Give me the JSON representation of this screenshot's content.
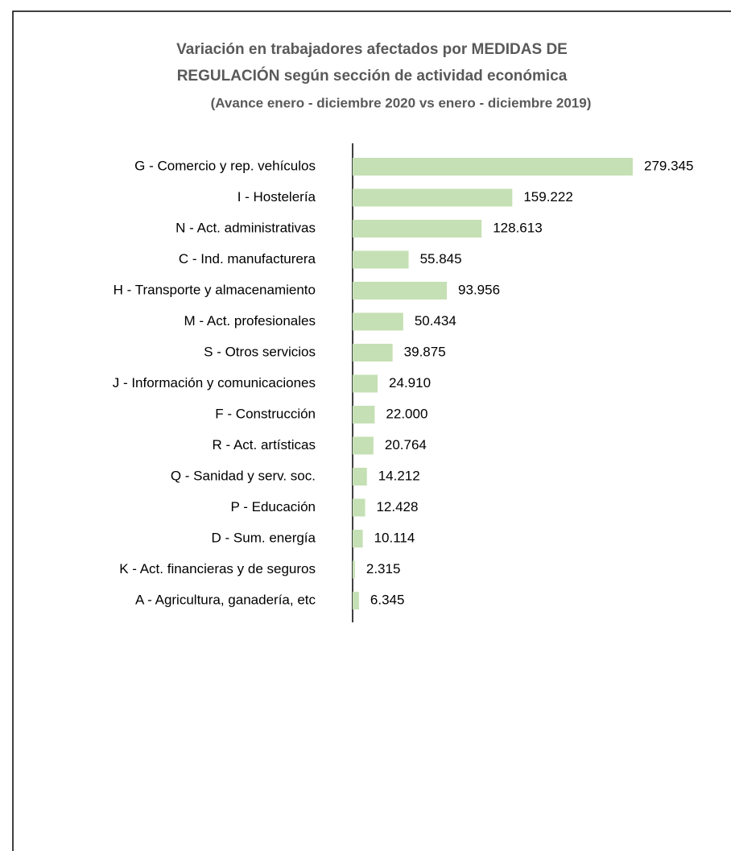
{
  "chart_data": {
    "type": "bar",
    "orientation": "horizontal",
    "title": [
      "Variación en trabajadores afectados por MEDIDAS DE",
      "REGULACIÓN según sección de actividad económica"
    ],
    "subtitle": "(Avance enero - diciembre 2020 vs enero - diciembre 2019)",
    "categories": [
      "G - Comercio y rep. vehículos",
      "I - Hostelería",
      "N - Act. administrativas",
      "C - Ind. manufacturera",
      "H - Transporte y almacenamiento",
      "M - Act. profesionales",
      "S - Otros servicios",
      "J - Información y comunicaciones",
      "F - Construcción",
      "R - Act. artísticas",
      "Q - Sanidad y serv. soc.",
      "P - Educación",
      "D - Sum. energía",
      "K - Act. financieras y de seguros",
      "A - Agricultura, ganadería, etc"
    ],
    "values": [
      279345,
      159222,
      128613,
      55845,
      93956,
      50434,
      39875,
      24910,
      22000,
      20764,
      14212,
      12428,
      10114,
      2315,
      6345
    ],
    "value_labels": [
      "279.345",
      "159.222",
      "128.613",
      "55.845",
      "93.956",
      "50.434",
      "39.875",
      "24.910",
      "22.000",
      "20.764",
      "14.212",
      "12.428",
      "10.114",
      "2.315",
      "6.345"
    ],
    "color": "#c5e0b4"
  }
}
